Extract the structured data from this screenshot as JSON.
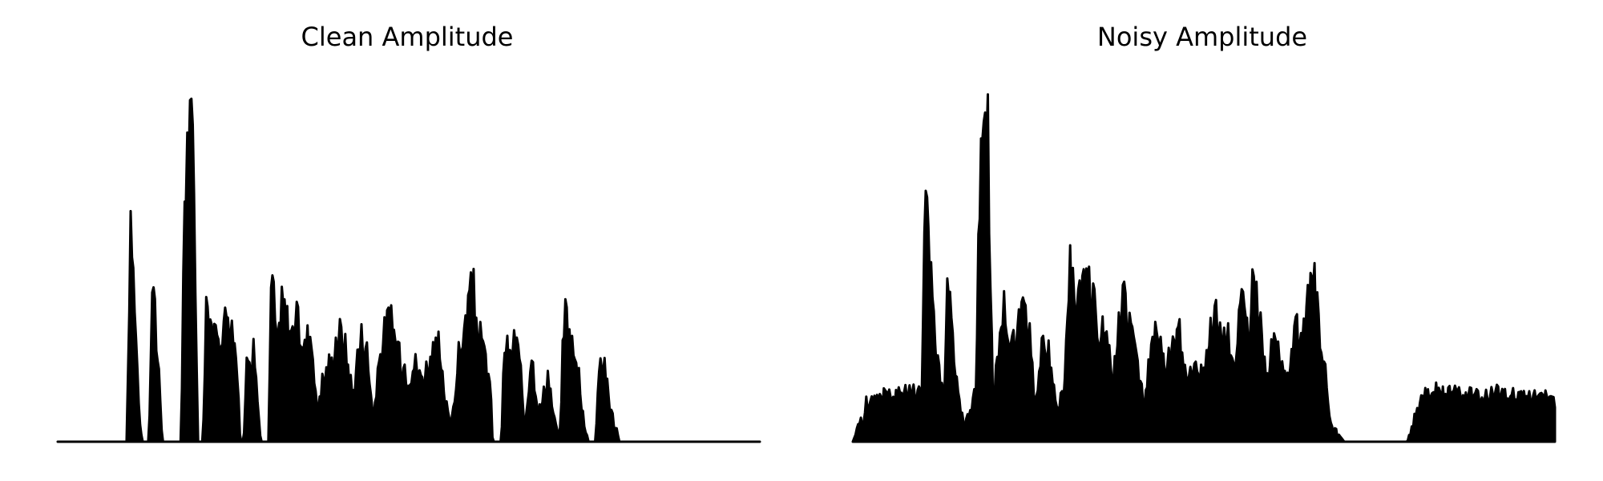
{
  "chart_data": [
    {
      "type": "area",
      "title": "Clean Amplitude",
      "xlabel": "",
      "ylabel": "",
      "axes_visible": false,
      "grid": false,
      "color": "#000000",
      "x": [
        0,
        0.5,
        1.0,
        1.5,
        2.0,
        2.5,
        3.0,
        3.5,
        4.0,
        4.5,
        5.0,
        5.5,
        6.0,
        6.5,
        7.0,
        7.5,
        8.0,
        8.5,
        9.0,
        9.5,
        10.0
      ],
      "envelope": [
        [
          0.0,
          0
        ],
        [
          9.9,
          0
        ],
        [
          10.3,
          0.68
        ],
        [
          10.6,
          0.62
        ],
        [
          11.0,
          0.45
        ],
        [
          11.6,
          0.1
        ],
        [
          12.0,
          0
        ],
        [
          13.0,
          0
        ],
        [
          13.5,
          0.55
        ],
        [
          14.2,
          0.3
        ],
        [
          14.9,
          0
        ],
        [
          17.6,
          0
        ],
        [
          18.0,
          0.78
        ],
        [
          18.6,
          1.0
        ],
        [
          19.3,
          0.95
        ],
        [
          20.0,
          0
        ],
        [
          20.7,
          0
        ],
        [
          21.2,
          0.45
        ],
        [
          22.0,
          0.37
        ],
        [
          23.0,
          0.3
        ],
        [
          24.2,
          0.45
        ],
        [
          25.4,
          0.3
        ],
        [
          26.0,
          0
        ],
        [
          26.5,
          0
        ],
        [
          27.0,
          0.3
        ],
        [
          28.0,
          0.28
        ],
        [
          28.9,
          0
        ],
        [
          30.0,
          0
        ],
        [
          30.5,
          0.57
        ],
        [
          31.2,
          0.3
        ],
        [
          32.0,
          0.45
        ],
        [
          33.1,
          0.35
        ],
        [
          34.0,
          0.4
        ],
        [
          35.0,
          0.3
        ],
        [
          36.0,
          0.36
        ],
        [
          37.0,
          0.1
        ],
        [
          38.0,
          0.22
        ],
        [
          39.0,
          0.25
        ],
        [
          40.0,
          0.36
        ],
        [
          41.0,
          0.3
        ],
        [
          42.0,
          0.15
        ],
        [
          43.2,
          0.35
        ],
        [
          44.0,
          0.3
        ],
        [
          45.0,
          0.08
        ],
        [
          46.0,
          0.3
        ],
        [
          47.3,
          0.4
        ],
        [
          48.0,
          0.35
        ],
        [
          49.0,
          0.25
        ],
        [
          50.0,
          0.22
        ],
        [
          51.0,
          0.25
        ],
        [
          52.0,
          0.2
        ],
        [
          53.0,
          0.27
        ],
        [
          54.3,
          0.3
        ],
        [
          55.0,
          0.15
        ],
        [
          56.0,
          0.05
        ],
        [
          57.0,
          0.25
        ],
        [
          59.0,
          0.5
        ],
        [
          60.0,
          0.35
        ],
        [
          61.5,
          0.2
        ],
        [
          62.0,
          0
        ],
        [
          63.2,
          0
        ],
        [
          63.6,
          0.32
        ],
        [
          64.5,
          0.25
        ],
        [
          65.0,
          0.35
        ],
        [
          65.8,
          0.25
        ],
        [
          66.5,
          0.05
        ],
        [
          67.5,
          0.3
        ],
        [
          68.5,
          0.08
        ],
        [
          69.8,
          0.22
        ],
        [
          70.6,
          0.08
        ],
        [
          71.5,
          0.0
        ],
        [
          72.2,
          0.45
        ],
        [
          73.0,
          0.33
        ],
        [
          74.2,
          0.22
        ],
        [
          75.0,
          0.05
        ],
        [
          75.6,
          0
        ],
        [
          76.6,
          0
        ],
        [
          77.0,
          0.25
        ],
        [
          78.0,
          0.25
        ],
        [
          78.6,
          0.12
        ],
        [
          80.0,
          0
        ],
        [
          100.0,
          0
        ]
      ]
    },
    {
      "type": "area",
      "title": "Noisy Amplitude",
      "xlabel": "",
      "ylabel": "",
      "axes_visible": false,
      "grid": false,
      "color": "#000000",
      "envelope": [
        [
          0.0,
          0
        ],
        [
          1.0,
          0.05
        ],
        [
          2.0,
          0.12
        ],
        [
          3.5,
          0.15
        ],
        [
          5.0,
          0.16
        ],
        [
          7.0,
          0.15
        ],
        [
          9.8,
          0.15
        ],
        [
          10.3,
          0.72
        ],
        [
          10.8,
          0.62
        ],
        [
          11.5,
          0.45
        ],
        [
          12.0,
          0.25
        ],
        [
          13.0,
          0.14
        ],
        [
          13.6,
          0.55
        ],
        [
          14.2,
          0.35
        ],
        [
          15.0,
          0.15
        ],
        [
          16.0,
          0.05
        ],
        [
          17.6,
          0.15
        ],
        [
          18.0,
          0.78
        ],
        [
          18.6,
          1.0
        ],
        [
          19.3,
          0.95
        ],
        [
          20.0,
          0.1
        ],
        [
          21.2,
          0.45
        ],
        [
          22.0,
          0.37
        ],
        [
          23.0,
          0.3
        ],
        [
          24.2,
          0.45
        ],
        [
          25.4,
          0.3
        ],
        [
          26.0,
          0.1
        ],
        [
          27.0,
          0.3
        ],
        [
          28.0,
          0.28
        ],
        [
          29.0,
          0.1
        ],
        [
          30.0,
          0.15
        ],
        [
          31.0,
          0.57
        ],
        [
          31.5,
          0.5
        ],
        [
          32.5,
          0.45
        ],
        [
          33.5,
          0.52
        ],
        [
          34.5,
          0.4
        ],
        [
          35.5,
          0.35
        ],
        [
          36.5,
          0.3
        ],
        [
          37.0,
          0.2
        ],
        [
          38.5,
          0.5
        ],
        [
          39.5,
          0.38
        ],
        [
          40.5,
          0.25
        ],
        [
          41.5,
          0.1
        ],
        [
          42.5,
          0.3
        ],
        [
          43.5,
          0.35
        ],
        [
          44.5,
          0.22
        ],
        [
          45.5,
          0.3
        ],
        [
          46.5,
          0.35
        ],
        [
          47.5,
          0.2
        ],
        [
          48.5,
          0.25
        ],
        [
          49.5,
          0.2
        ],
        [
          50.5,
          0.3
        ],
        [
          51.5,
          0.45
        ],
        [
          52.5,
          0.3
        ],
        [
          53.5,
          0.35
        ],
        [
          54.5,
          0.25
        ],
        [
          55.5,
          0.45
        ],
        [
          56.5,
          0.3
        ],
        [
          57.0,
          0.55
        ],
        [
          58.0,
          0.38
        ],
        [
          59.0,
          0.2
        ],
        [
          60.0,
          0.35
        ],
        [
          61.0,
          0.25
        ],
        [
          62.0,
          0.2
        ],
        [
          63.0,
          0.38
        ],
        [
          64.0,
          0.3
        ],
        [
          65.5,
          0.55
        ],
        [
          66.5,
          0.35
        ],
        [
          67.5,
          0.2
        ],
        [
          68.0,
          0.05
        ],
        [
          70.0,
          0.0
        ],
        [
          79.0,
          0.0
        ],
        [
          80.0,
          0.08
        ],
        [
          81.0,
          0.14
        ],
        [
          82.5,
          0.15
        ],
        [
          84.0,
          0.16
        ],
        [
          85.0,
          0.15
        ],
        [
          100.0,
          0.15
        ]
      ]
    }
  ]
}
